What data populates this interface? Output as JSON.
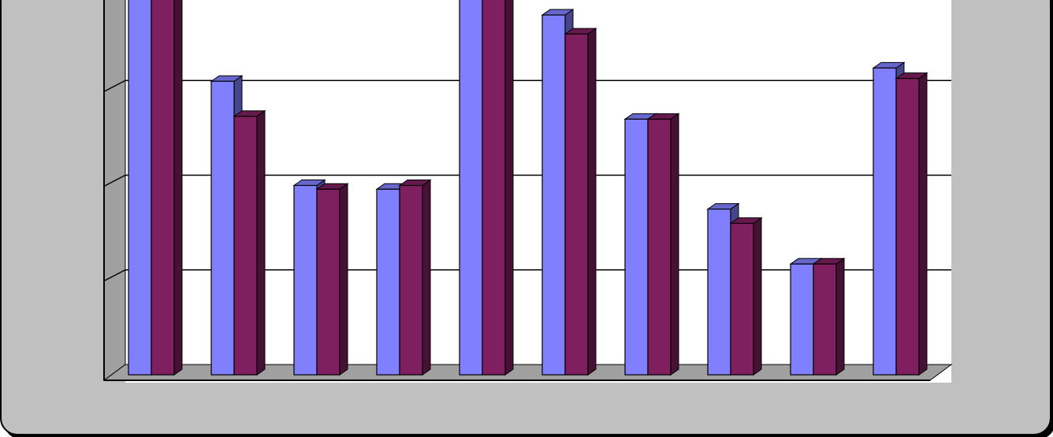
{
  "chart_data": {
    "type": "bar",
    "style": "3d-clustered",
    "grid": true,
    "legend": "none",
    "title": "",
    "xlabel": "",
    "ylabel": "",
    "categories": [
      "",
      "",
      "",
      "",
      "",
      "",
      "",
      "",
      "",
      ""
    ],
    "ylim": [
      0,
      4
    ],
    "series": [
      {
        "color": "#8080ff",
        "values": [
          4.1,
          3.1,
          2.0,
          1.96,
          4.1,
          3.8,
          2.7,
          1.75,
          1.17,
          3.24
        ]
      },
      {
        "color": "#7f1f5f",
        "values": [
          4.1,
          2.73,
          1.96,
          2.0,
          4.1,
          3.6,
          2.7,
          1.6,
          1.17,
          3.13
        ]
      }
    ],
    "colors": {
      "plot_area": "#ffffff",
      "wall_side": "#a0a0a0",
      "floor": "#a0a0a0",
      "frame": "#c0c0c0",
      "gridline": "#000000"
    }
  }
}
